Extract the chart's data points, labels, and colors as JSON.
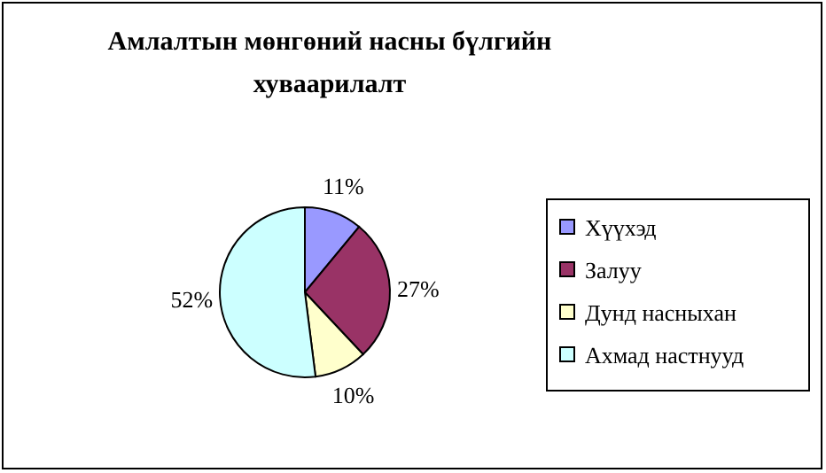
{
  "chart_data": {
    "type": "pie",
    "title": "Амлалтын мөнгөний насны бүлгийн\nхуваарилалт",
    "categories": [
      "Хүүхэд",
      "Залуу",
      "Дунд насныхан",
      "Ахмад настнууд"
    ],
    "values": [
      11,
      27,
      10,
      52
    ],
    "colors": [
      "#9999ff",
      "#993366",
      "#ffffcc",
      "#ccffff"
    ],
    "value_labels": [
      "11%",
      "27%",
      "10%",
      "52%"
    ],
    "legend": "right"
  }
}
